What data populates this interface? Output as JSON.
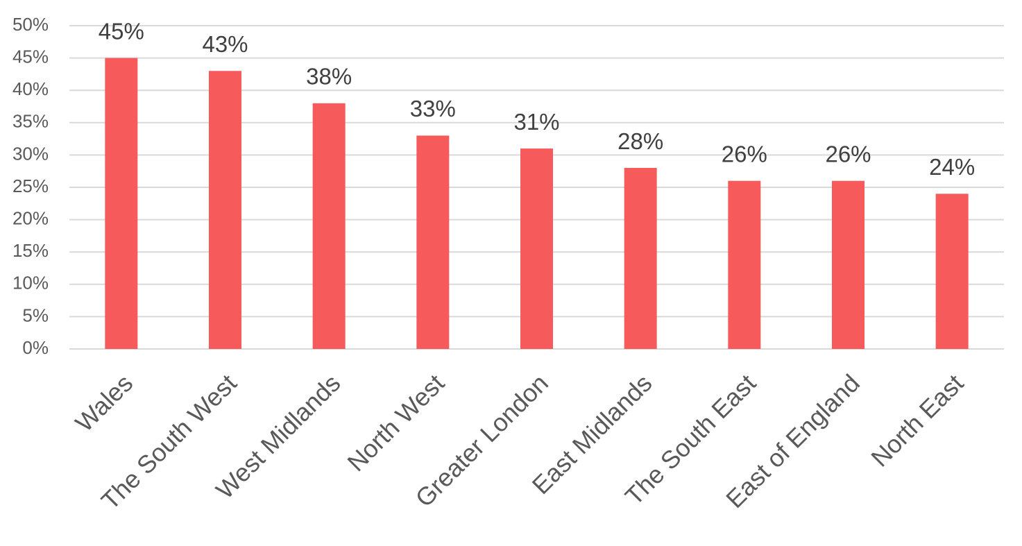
{
  "chart_data": {
    "type": "bar",
    "categories": [
      "Wales",
      "The South West",
      "West Midlands",
      "North West",
      "Greater London",
      "East Midlands",
      "The South East",
      "East of England",
      "North East"
    ],
    "values": [
      45,
      43,
      38,
      33,
      31,
      28,
      26,
      26,
      24
    ],
    "value_labels": [
      "45%",
      "43%",
      "38%",
      "33%",
      "31%",
      "28%",
      "26%",
      "26%",
      "24%"
    ],
    "color": "#f65a5b",
    "ylim": [
      0,
      50
    ],
    "yticks": [
      {
        "value": 0,
        "label": "0%"
      },
      {
        "value": 5,
        "label": "5%"
      },
      {
        "value": 10,
        "label": "10%"
      },
      {
        "value": 15,
        "label": "15%"
      },
      {
        "value": 20,
        "label": "20%"
      },
      {
        "value": 25,
        "label": "25%"
      },
      {
        "value": 30,
        "label": "30%"
      },
      {
        "value": 35,
        "label": "35%"
      },
      {
        "value": 40,
        "label": "40%"
      },
      {
        "value": 45,
        "label": "45%"
      },
      {
        "value": 50,
        "label": "50%"
      }
    ],
    "grid": true
  }
}
